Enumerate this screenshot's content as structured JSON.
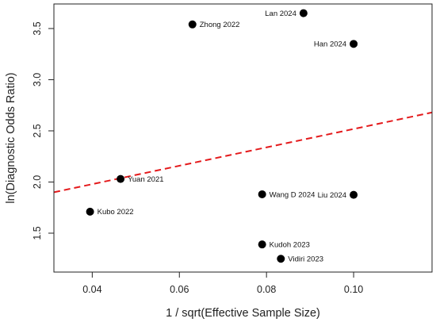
{
  "chart_data": {
    "type": "scatter",
    "title": "",
    "xlabel": "1 / sqrt(Effective Sample Size)",
    "ylabel": "ln(Diagnostic Odds Ratio)",
    "xlim": [
      0.0312,
      0.118
    ],
    "ylim": [
      1.12,
      3.74
    ],
    "x_ticks": [
      0.04,
      0.06,
      0.08,
      0.1
    ],
    "x_tick_labels": [
      "0.04",
      "0.06",
      "0.08",
      "0.10"
    ],
    "y_ticks": [
      1.5,
      2.0,
      2.5,
      3.0,
      3.5
    ],
    "y_tick_labels": [
      "1.5",
      "2.0",
      "2.5",
      "3.0",
      "3.5"
    ],
    "grid": false,
    "points": [
      {
        "label": "Lan 2024",
        "x": 0.0885,
        "y": 3.65
      },
      {
        "label": "Zhong 2022",
        "x": 0.063,
        "y": 3.54
      },
      {
        "label": "Han 2024",
        "x": 0.1,
        "y": 3.35
      },
      {
        "label": "Yuan 2021",
        "x": 0.0465,
        "y": 2.03
      },
      {
        "label": "Wang D 2024",
        "x": 0.079,
        "y": 1.88
      },
      {
        "label": "Liu 2024",
        "x": 0.1,
        "y": 1.875
      },
      {
        "label": "Kubo 2022",
        "x": 0.0395,
        "y": 1.71
      },
      {
        "label": "Kudoh 2023",
        "x": 0.079,
        "y": 1.39
      },
      {
        "label": "Vidiri 2023",
        "x": 0.0833,
        "y": 1.25
      }
    ],
    "regression_line": {
      "style": "dashed",
      "color": "#e41a1c",
      "x": [
        0.0312,
        0.118
      ],
      "y": [
        1.9,
        2.68
      ]
    },
    "point_color": "#000000"
  }
}
